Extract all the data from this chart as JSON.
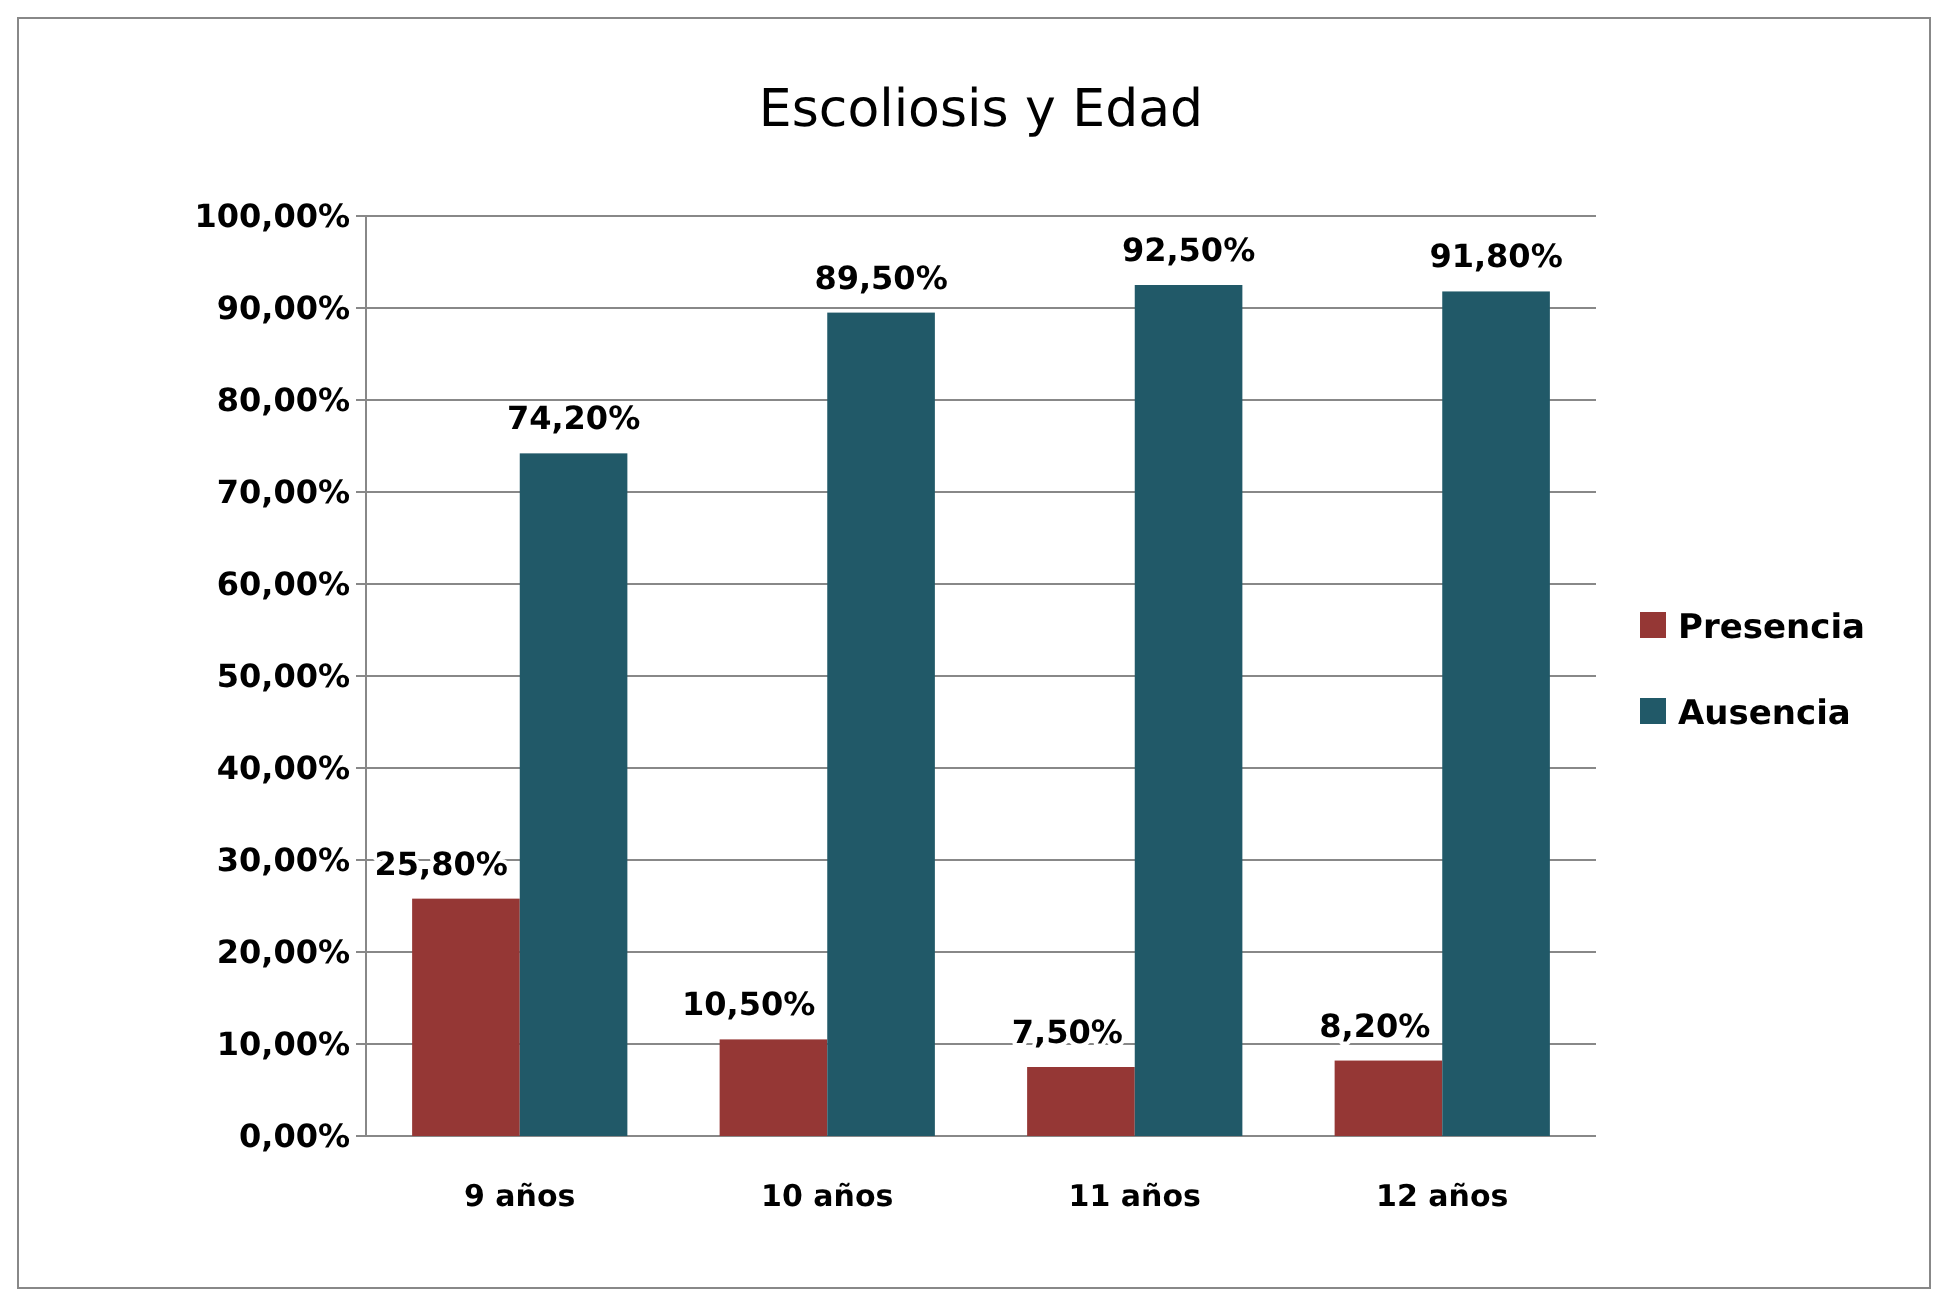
{
  "chart_data": {
    "type": "bar",
    "title": "Escoliosis y Edad",
    "categories": [
      "9 años",
      "10 años",
      "11 años",
      "12 años"
    ],
    "series": [
      {
        "name": "Presencia",
        "color": "#953735",
        "values": [
          25.8,
          10.5,
          7.5,
          8.2
        ],
        "value_labels": [
          "25,80%",
          "10,50%",
          "7,50%",
          "8,20%"
        ]
      },
      {
        "name": "Ausencia",
        "color": "#215968",
        "values": [
          74.2,
          89.5,
          92.5,
          91.8
        ],
        "value_labels": [
          "74,20%",
          "89,50%",
          "92,50%",
          "91,80%"
        ]
      }
    ],
    "ylim": [
      0,
      100
    ],
    "yticks": [
      {
        "value": 0,
        "label": "0,00%"
      },
      {
        "value": 10,
        "label": "10,00%"
      },
      {
        "value": 20,
        "label": "20,00%"
      },
      {
        "value": 30,
        "label": "30,00%"
      },
      {
        "value": 40,
        "label": "40,00%"
      },
      {
        "value": 50,
        "label": "50,00%"
      },
      {
        "value": 60,
        "label": "60,00%"
      },
      {
        "value": 70,
        "label": "70,00%"
      },
      {
        "value": 80,
        "label": "80,00%"
      },
      {
        "value": 90,
        "label": "90,00%"
      },
      {
        "value": 100,
        "label": "100,00%"
      }
    ],
    "grid": "y",
    "legend": "right"
  }
}
